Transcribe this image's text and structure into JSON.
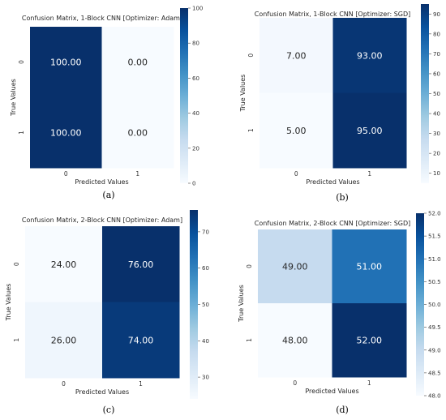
{
  "chart_data": [
    {
      "type": "heatmap",
      "caption": "(a)",
      "title": "Confusion Matrix, 1-Block CNN [Optimizer: Adam]",
      "xlabel": "Predicted Values",
      "ylabel": "True Values",
      "x_categories": [
        "0",
        "1"
      ],
      "y_categories": [
        "0",
        "1"
      ],
      "values": [
        [
          100.0,
          0.0
        ],
        [
          100.0,
          0.0
        ]
      ],
      "value_labels": [
        [
          "100.00",
          "0.00"
        ],
        [
          "100.00",
          "0.00"
        ]
      ],
      "colorbar": {
        "min": 0,
        "max": 100,
        "ticks": [
          "0",
          "20",
          "40",
          "60",
          "80",
          "100"
        ],
        "tick_values": [
          0,
          20,
          40,
          60,
          80,
          100
        ]
      },
      "colormap": "Blues"
    },
    {
      "type": "heatmap",
      "caption": "(b)",
      "title": "Confusion Matrix, 1-Block CNN [Optimizer: SGD]",
      "xlabel": "Predicted Values",
      "ylabel": "True Values",
      "x_categories": [
        "0",
        "1"
      ],
      "y_categories": [
        "0",
        "1"
      ],
      "values": [
        [
          7.0,
          93.0
        ],
        [
          5.0,
          95.0
        ]
      ],
      "value_labels": [
        [
          "7.00",
          "93.00"
        ],
        [
          "5.00",
          "95.00"
        ]
      ],
      "colorbar": {
        "min": 5,
        "max": 95,
        "ticks": [
          "10",
          "20",
          "30",
          "40",
          "50",
          "60",
          "70",
          "80",
          "90"
        ],
        "tick_values": [
          10,
          20,
          30,
          40,
          50,
          60,
          70,
          80,
          90
        ]
      },
      "colormap": "Blues"
    },
    {
      "type": "heatmap",
      "caption": "(c)",
      "title": "Confusion Matrix, 2-Block CNN [Optimizer: Adam]",
      "xlabel": "Predicted Values",
      "ylabel": "True Values",
      "x_categories": [
        "0",
        "1"
      ],
      "y_categories": [
        "0",
        "1"
      ],
      "values": [
        [
          24.0,
          76.0
        ],
        [
          26.0,
          74.0
        ]
      ],
      "value_labels": [
        [
          "24.00",
          "76.00"
        ],
        [
          "26.00",
          "74.00"
        ]
      ],
      "colorbar": {
        "min": 24,
        "max": 76,
        "ticks": [
          "30",
          "40",
          "50",
          "60",
          "70"
        ],
        "tick_values": [
          30,
          40,
          50,
          60,
          70
        ]
      },
      "colormap": "Blues"
    },
    {
      "type": "heatmap",
      "caption": "(d)",
      "title": "Confusion Matrix, 2-Block CNN [Optimizer: SGD]",
      "xlabel": "Predicted Values",
      "ylabel": "True Values",
      "x_categories": [
        "0",
        "1"
      ],
      "y_categories": [
        "0",
        "1"
      ],
      "values": [
        [
          49.0,
          51.0
        ],
        [
          48.0,
          52.0
        ]
      ],
      "value_labels": [
        [
          "49.00",
          "51.00"
        ],
        [
          "48.00",
          "52.00"
        ]
      ],
      "colorbar": {
        "min": 48,
        "max": 52,
        "ticks": [
          "48.0",
          "48.5",
          "49.0",
          "49.5",
          "50.0",
          "50.5",
          "51.0",
          "51.5",
          "52.0"
        ],
        "tick_values": [
          48.0,
          48.5,
          49.0,
          49.5,
          50.0,
          50.5,
          51.0,
          51.5,
          52.0
        ]
      },
      "colormap": "Blues"
    }
  ]
}
